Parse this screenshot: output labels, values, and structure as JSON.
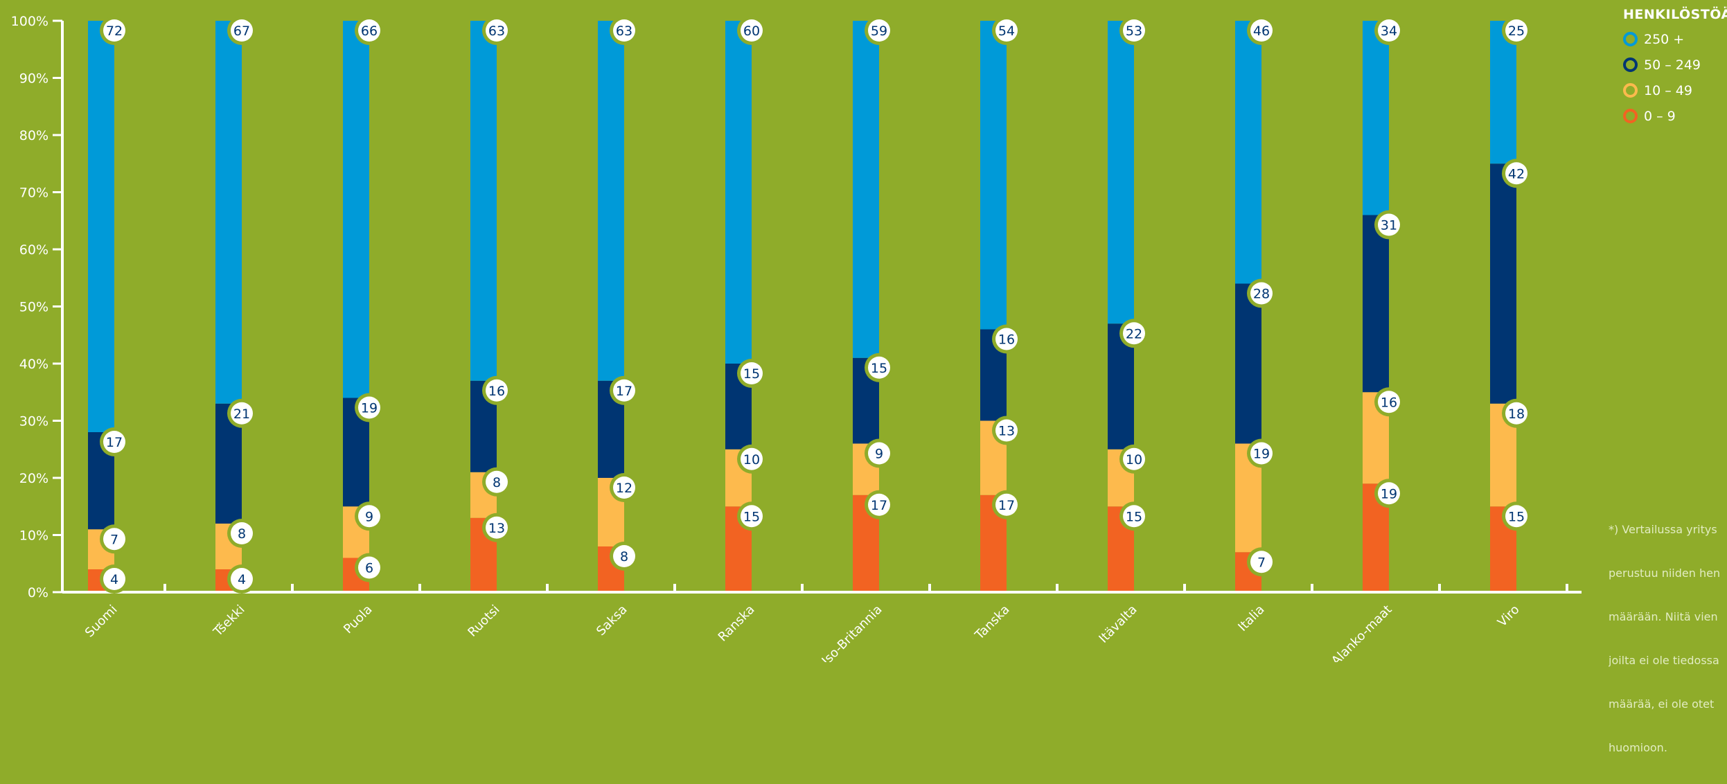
{
  "legend": {
    "title": "HENKILÖSTÖÄ",
    "items": [
      {
        "label": "250 +",
        "color": "#009ad8"
      },
      {
        "label": "50 – 249",
        "color": "#003572"
      },
      {
        "label": "10 – 49",
        "color": "#fdba4d"
      },
      {
        "label": "0 – 9",
        "color": "#f26322"
      }
    ]
  },
  "footnote": {
    "lines": [
      "*) Vertailussa yritys",
      "perustuu niiden hen",
      "määrään. Niitä vien",
      "joilta ei ole tiedossa",
      "määrää, ei ole otet",
      "huomioon."
    ]
  },
  "colors": {
    "background": "#8fac2a",
    "axis": "#ffffff",
    "badge_ring": "#8fac2a",
    "badge_fill": "#ffffff",
    "badge_text": "#003572"
  },
  "chart_data": {
    "type": "bar",
    "stacked": true,
    "categories": [
      "Suomi",
      "Tšekki",
      "Puola",
      "Ruotsi",
      "Saksa",
      "Ranska",
      "Iso-Britannia",
      "Tanska",
      "Itävalta",
      "Italia",
      "Alanko-maat",
      "Viro"
    ],
    "series": [
      {
        "name": "0 – 9",
        "color": "#f26322",
        "values": [
          4,
          4,
          6,
          13,
          8,
          15,
          17,
          17,
          15,
          7,
          19,
          15
        ]
      },
      {
        "name": "10 – 49",
        "color": "#fdba4d",
        "values": [
          7,
          8,
          9,
          8,
          12,
          10,
          9,
          13,
          10,
          19,
          16,
          18
        ]
      },
      {
        "name": "50 – 249",
        "color": "#003572",
        "values": [
          17,
          21,
          19,
          16,
          17,
          15,
          15,
          16,
          22,
          28,
          31,
          42
        ]
      },
      {
        "name": "250 +",
        "color": "#009ad8",
        "values": [
          72,
          67,
          66,
          63,
          63,
          60,
          59,
          54,
          53,
          46,
          34,
          25
        ]
      }
    ],
    "y_ticks": [
      "0%",
      "10%",
      "20%",
      "30%",
      "40%",
      "50%",
      "60%",
      "70%",
      "80%",
      "90%",
      "100%"
    ],
    "ylim": [
      0,
      100
    ],
    "xlabel": "",
    "ylabel": "",
    "legend_position": "top-right",
    "grid": false
  }
}
